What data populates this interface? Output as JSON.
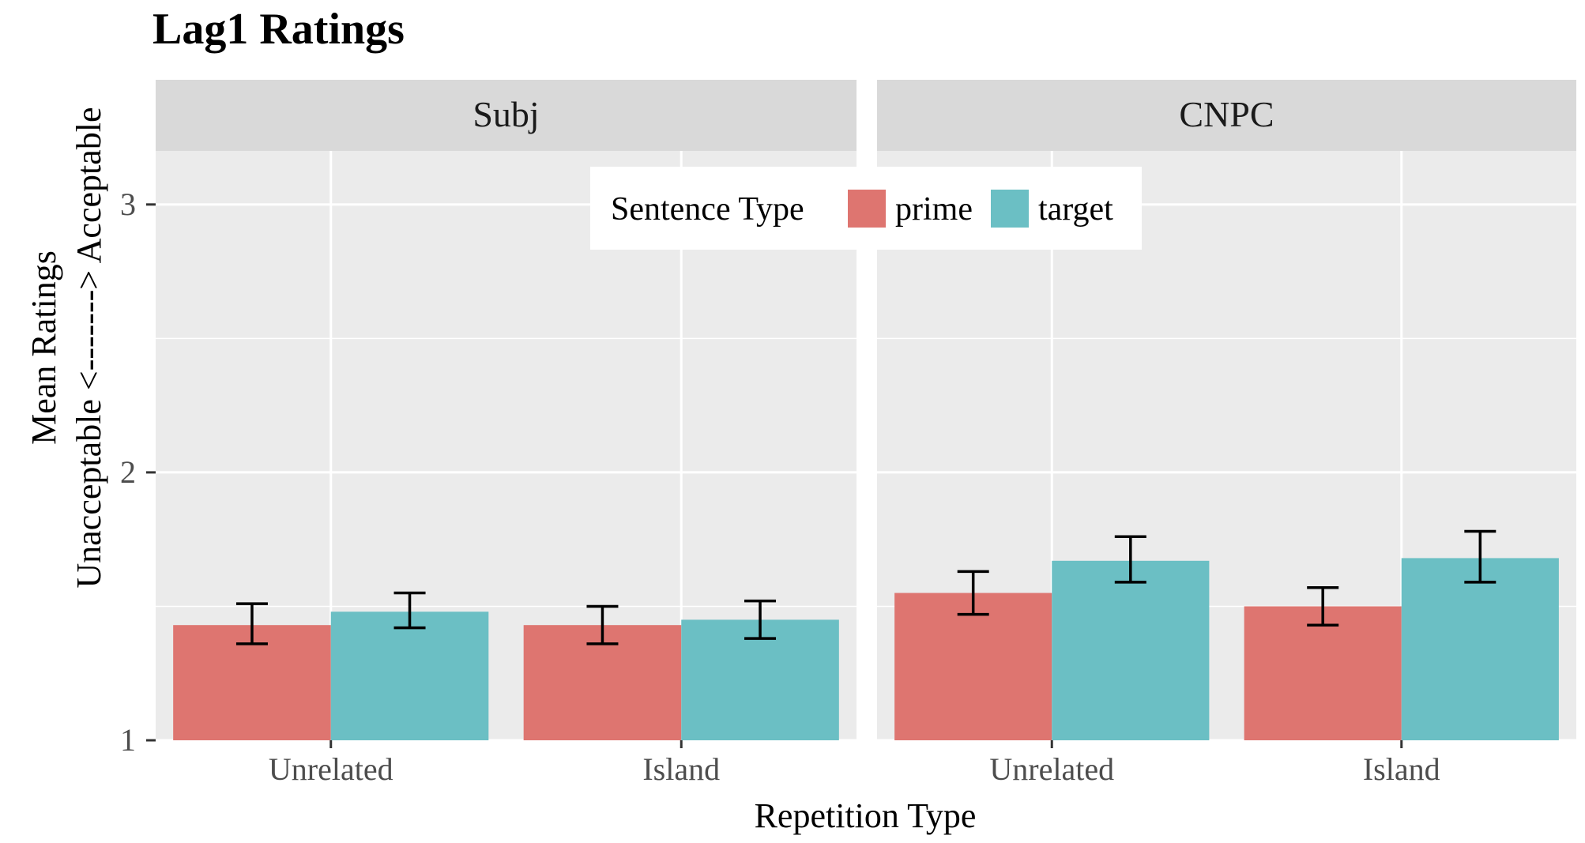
{
  "chart_data": {
    "type": "bar",
    "title": "Lag1 Ratings",
    "xlabel": "Repetition Type",
    "ylabel": "Mean Ratings\nUnacceptable <-------> Acceptable",
    "ylim": [
      1,
      3.2
    ],
    "yticks": [
      1,
      2,
      3
    ],
    "grid": true,
    "categories": [
      "Unrelated",
      "Island"
    ],
    "legend": {
      "title": "Sentence Type",
      "placement": "top-center",
      "entries": [
        "prime",
        "target"
      ]
    },
    "colors": {
      "prime": "#de7570",
      "target": "#6bbfc4"
    },
    "panels": [
      {
        "name": "Subj",
        "series": [
          {
            "name": "prime",
            "values": [
              1.43,
              1.43
            ],
            "err_low": [
              1.36,
              1.36
            ],
            "err_high": [
              1.51,
              1.5
            ]
          },
          {
            "name": "target",
            "values": [
              1.48,
              1.45
            ],
            "err_low": [
              1.42,
              1.38
            ],
            "err_high": [
              1.55,
              1.52
            ]
          }
        ]
      },
      {
        "name": "CNPC",
        "series": [
          {
            "name": "prime",
            "values": [
              1.55,
              1.5
            ],
            "err_low": [
              1.47,
              1.43
            ],
            "err_high": [
              1.63,
              1.57
            ]
          },
          {
            "name": "target",
            "values": [
              1.67,
              1.68
            ],
            "err_low": [
              1.59,
              1.59
            ],
            "err_high": [
              1.76,
              1.78
            ]
          }
        ]
      }
    ]
  }
}
